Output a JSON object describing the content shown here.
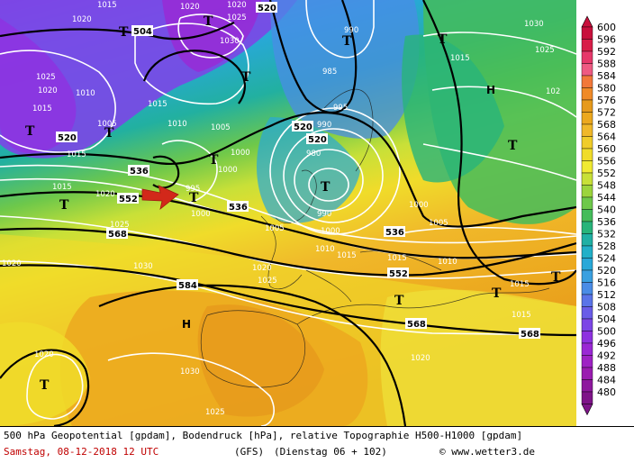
{
  "caption": {
    "line1": "500 hPa Geopotential [gpdam], Bodendruck [hPa], relative Topographie H500-H1000 [gpdam]",
    "date": "Samstag, 08-12-2018  12 UTC",
    "model": "(GFS)",
    "run": "(Dienstag 06 + 102)",
    "copyright": "© www.wetter3.de"
  },
  "legend": {
    "values": [
      "600",
      "596",
      "592",
      "588",
      "584",
      "580",
      "576",
      "572",
      "568",
      "564",
      "560",
      "556",
      "552",
      "548",
      "544",
      "540",
      "536",
      "532",
      "528",
      "524",
      "520",
      "516",
      "512",
      "508",
      "504",
      "500",
      "496",
      "492",
      "488",
      "484",
      "480"
    ],
    "colors": [
      "#c8103c",
      "#d81e48",
      "#e6386a",
      "#ee5a82",
      "#f2783a",
      "#f08a28",
      "#e69a1c",
      "#eca81e",
      "#f0b82a",
      "#f0cc2a",
      "#f0dc2a",
      "#f0ea32",
      "#c8e038",
      "#9cd43c",
      "#6ec84a",
      "#44bc5a",
      "#28b47a",
      "#20b0a4",
      "#22b0c8",
      "#28a8d8",
      "#3aa0e0",
      "#4a8ce6",
      "#5a74e8",
      "#6a5ce8",
      "#7c46e6",
      "#8e32e0",
      "#9a28d4",
      "#9e22c4",
      "#9a1cb0",
      "#8e189e",
      "#7e1488"
    ]
  },
  "height_contours": [
    "504",
    "520",
    "536",
    "552",
    "568",
    "584"
  ],
  "pressure_contours": [
    "990",
    "995",
    "1000",
    "1005",
    "1010",
    "1015",
    "1020",
    "1025",
    "1030"
  ],
  "pressure_centers": [
    {
      "type": "T"
    },
    {
      "type": "T"
    },
    {
      "type": "T"
    },
    {
      "type": "T"
    },
    {
      "type": "T"
    },
    {
      "type": "T"
    },
    {
      "type": "T"
    },
    {
      "type": "T"
    },
    {
      "type": "T"
    },
    {
      "type": "T"
    },
    {
      "type": "T"
    },
    {
      "type": "T"
    },
    {
      "type": "T"
    },
    {
      "type": "T"
    },
    {
      "type": "T"
    },
    {
      "type": "H"
    },
    {
      "type": "H"
    }
  ]
}
